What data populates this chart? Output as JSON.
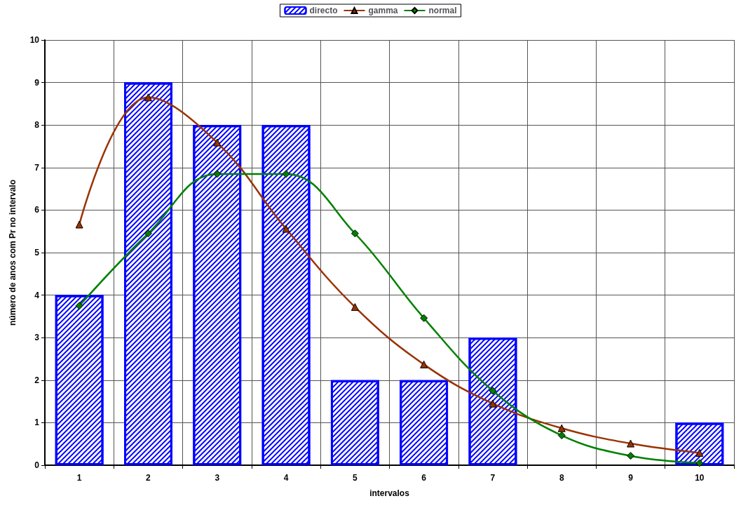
{
  "chart_data": {
    "type": "bar",
    "xlabel": "intervalos",
    "ylabel": "número de anos com Pr no intervalo",
    "categories": [
      "1",
      "2",
      "3",
      "4",
      "5",
      "6",
      "7",
      "8",
      "9",
      "10"
    ],
    "series": [
      {
        "name": "directo",
        "color": "#0000ff",
        "values": [
          4,
          9,
          8,
          8,
          2,
          2,
          3,
          0,
          0,
          1
        ]
      },
      {
        "name": "gamma",
        "type": "line",
        "marker": "triangle",
        "color": "#993300",
        "values": [
          5.66,
          8.65,
          7.59,
          5.56,
          3.72,
          2.37,
          1.45,
          0.87,
          0.51,
          0.29
        ]
      },
      {
        "name": "normal",
        "type": "line",
        "marker": "diamond",
        "color": "#008000",
        "values": [
          3.75,
          5.45,
          6.85,
          6.85,
          5.45,
          3.46,
          1.75,
          0.7,
          0.22,
          0.05
        ]
      }
    ],
    "ylim": [
      0,
      10
    ],
    "yticks": [
      0,
      1,
      2,
      3,
      4,
      5,
      6,
      7,
      8,
      9,
      10
    ],
    "grid": true,
    "legend": "top"
  }
}
